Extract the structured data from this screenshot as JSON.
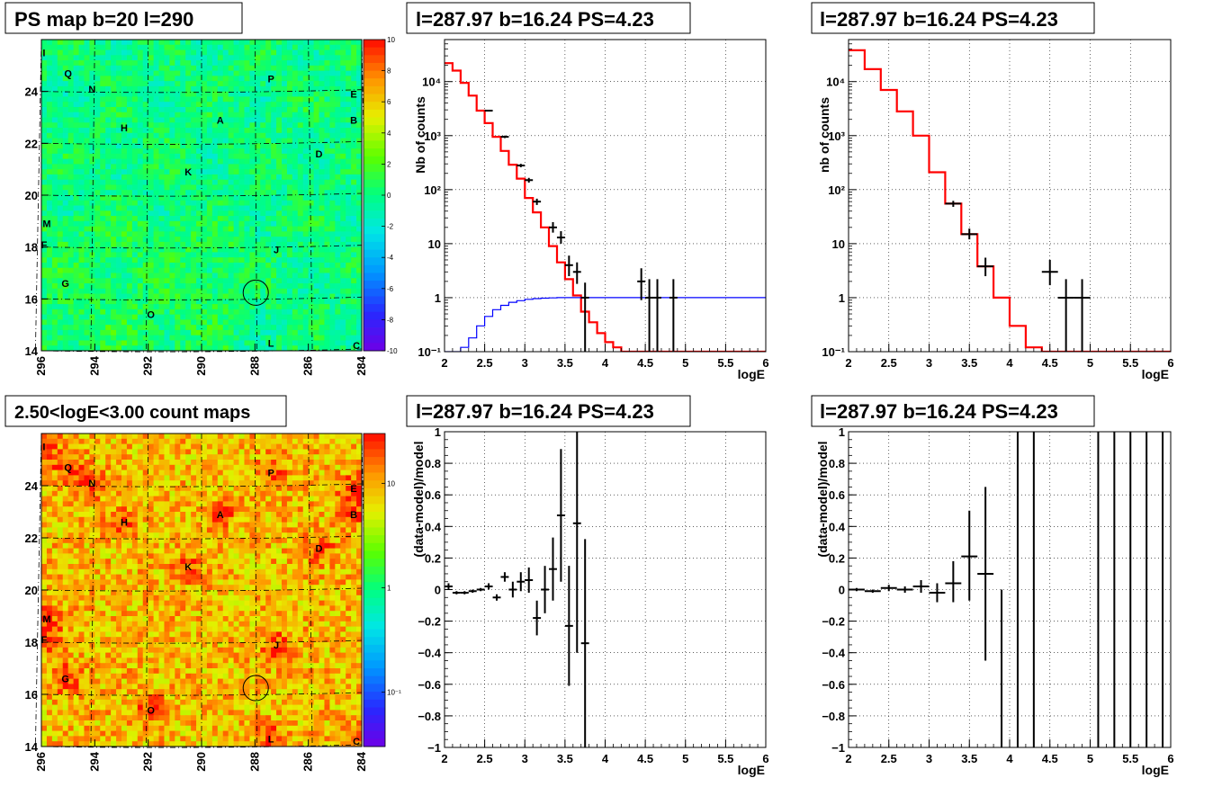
{
  "panels": {
    "map_ps": {
      "title": "PS map b=20 l=290",
      "x_ticks": [
        "296",
        "294",
        "292",
        "290",
        "288",
        "286",
        "284"
      ],
      "y_ticks": [
        "24",
        "22",
        "20",
        "18",
        "16",
        "14"
      ],
      "colorbar_ticks": [
        "10",
        "8",
        "6",
        "4",
        "2",
        "0",
        "-2",
        "-4",
        "-6",
        "-8",
        "-10"
      ],
      "colorscale": "linear",
      "zrange": [
        -10,
        10
      ]
    },
    "map_counts": {
      "title": "2.50<logE<3.00 count maps",
      "x_ticks": [
        "296",
        "294",
        "292",
        "290",
        "288",
        "286",
        "284"
      ],
      "y_ticks": [
        "24",
        "22",
        "20",
        "18",
        "16",
        "14"
      ],
      "colorbar_ticks": [
        "10",
        "1",
        "10⁻¹"
      ],
      "colorscale": "log"
    },
    "spec1": {
      "title": "l=287.97 b=16.24 PS=4.23",
      "ylabel": "Nb of counts",
      "xlabel": "logE"
    },
    "spec2": {
      "title": "l=287.97 b=16.24 PS=4.23",
      "ylabel": "nb of counts",
      "xlabel": "logE"
    },
    "res1": {
      "title": "l=287.97 b=16.24 PS=4.23",
      "ylabel": "(data-model)/model",
      "xlabel": "logE"
    },
    "res2": {
      "title": "l=287.97 b=16.24 PS=4.23",
      "ylabel": "(data-model)/model",
      "xlabel": "logE"
    }
  },
  "sources": [
    {
      "label": "I",
      "l": 295.9,
      "b": 25.5
    },
    {
      "label": "Q",
      "l": 295.0,
      "b": 24.7
    },
    {
      "label": "N",
      "l": 294.1,
      "b": 24.1
    },
    {
      "label": "P",
      "l": 287.4,
      "b": 24.5
    },
    {
      "label": "E",
      "l": 284.3,
      "b": 23.9
    },
    {
      "label": "A",
      "l": 289.3,
      "b": 22.9
    },
    {
      "label": "B",
      "l": 284.3,
      "b": 22.9
    },
    {
      "label": "H",
      "l": 292.9,
      "b": 22.6
    },
    {
      "label": "D",
      "l": 285.6,
      "b": 21.6
    },
    {
      "label": "K",
      "l": 290.5,
      "b": 20.9
    },
    {
      "label": "M",
      "l": 295.8,
      "b": 18.9
    },
    {
      "label": "F",
      "l": 295.9,
      "b": 18.1
    },
    {
      "label": "J",
      "l": 287.2,
      "b": 17.9
    },
    {
      "label": "G",
      "l": 295.1,
      "b": 16.6
    },
    {
      "label": "O",
      "l": 291.9,
      "b": 15.4
    },
    {
      "label": "L",
      "l": 287.4,
      "b": 14.3
    },
    {
      "label": "C",
      "l": 284.2,
      "b": 14.2
    }
  ],
  "candidate": {
    "l": 287.97,
    "b": 16.24,
    "ps": 4.23
  },
  "chart_data": [
    {
      "type": "heatmap",
      "title": "PS map b=20 l=290",
      "xrange": [
        296,
        284
      ],
      "yrange": [
        14,
        26
      ],
      "zrange": [
        -10,
        10
      ],
      "grid": true
    },
    {
      "type": "heatmap",
      "title": "2.50<logE<3.00 count maps",
      "xrange": [
        296,
        284
      ],
      "yrange": [
        14,
        26
      ],
      "zscale": "log",
      "zrange": [
        0.03,
        30
      ],
      "grid": true
    },
    {
      "type": "line",
      "title": "l=287.97 b=16.24 PS=4.23",
      "xlabel": "logE",
      "ylabel": "Nb of counts",
      "xlim": [
        2,
        6
      ],
      "ylim": [
        0.1,
        60000
      ],
      "yscale": "log",
      "grid": true,
      "x_ticks": [
        2,
        2.5,
        3,
        3.5,
        4,
        4.5,
        5,
        5.5,
        6
      ],
      "y_ticks": [
        {
          "v": 0.1,
          "t": "10⁻¹"
        },
        {
          "v": 1,
          "t": "1"
        },
        {
          "v": 10,
          "t": "10"
        },
        {
          "v": 100,
          "t": "10²"
        },
        {
          "v": 1000,
          "t": "10³"
        },
        {
          "v": 10000,
          "t": "10⁴"
        }
      ],
      "series": [
        {
          "style": "step",
          "color": "#ff0000",
          "edges": [
            2.0,
            2.1,
            2.2,
            2.3,
            2.4,
            2.5,
            2.6,
            2.7,
            2.8,
            2.9,
            3.0,
            3.1,
            3.2,
            3.3,
            3.4,
            3.5,
            3.6,
            3.7,
            3.8,
            3.9,
            4.0,
            4.1,
            4.2,
            4.3,
            4.4,
            6.0
          ],
          "values": [
            22000,
            16000,
            9500,
            5500,
            2900,
            1700,
            950,
            520,
            290,
            160,
            70,
            38,
            20,
            9,
            4.5,
            2.2,
            1.1,
            0.55,
            0.35,
            0.22,
            0.15,
            0.12,
            0.1,
            0.1,
            0.1
          ]
        },
        {
          "style": "step",
          "color": "#0000ff",
          "edges": [
            2.0,
            2.1,
            2.2,
            2.3,
            2.4,
            2.5,
            2.6,
            2.7,
            2.8,
            2.9,
            3.0,
            3.1,
            3.2,
            3.3,
            3.4,
            3.5,
            3.6,
            6.0
          ],
          "values": [
            0.1,
            0.1,
            0.12,
            0.18,
            0.3,
            0.45,
            0.6,
            0.72,
            0.82,
            0.88,
            0.93,
            0.96,
            0.98,
            0.99,
            1.0,
            1.0,
            1.0
          ]
        },
        {
          "style": "errorbars",
          "color": "#000000",
          "points": [
            {
              "x": 2.55,
              "y": 2900,
              "lo": 2800,
              "hi": 3000,
              "xw": 0.05
            },
            {
              "x": 2.75,
              "y": 950,
              "lo": 900,
              "hi": 1000,
              "xw": 0.05
            },
            {
              "x": 2.95,
              "y": 280,
              "lo": 260,
              "hi": 300,
              "xw": 0.05
            },
            {
              "x": 3.05,
              "y": 150,
              "lo": 135,
              "hi": 165,
              "xw": 0.05
            },
            {
              "x": 3.15,
              "y": 60,
              "lo": 52,
              "hi": 68,
              "xw": 0.05
            },
            {
              "x": 3.35,
              "y": 20,
              "lo": 16,
              "hi": 25,
              "xw": 0.05
            },
            {
              "x": 3.45,
              "y": 13,
              "lo": 10,
              "hi": 17,
              "xw": 0.05
            },
            {
              "x": 3.55,
              "y": 4,
              "lo": 2.5,
              "hi": 6,
              "xw": 0.05
            },
            {
              "x": 3.65,
              "y": 3,
              "lo": 1.8,
              "hi": 4.5,
              "xw": 0.05
            },
            {
              "x": 3.75,
              "y": 1,
              "lo": 0.1,
              "hi": 1.9,
              "xw": 0.05
            },
            {
              "x": 4.45,
              "y": 2,
              "lo": 0.9,
              "hi": 3.5,
              "xw": 0.05
            },
            {
              "x": 4.55,
              "y": 1,
              "lo": 0.1,
              "hi": 2.2,
              "xw": 0.05
            },
            {
              "x": 4.65,
              "y": 1,
              "lo": 0.1,
              "hi": 2.2,
              "xw": 0.05
            },
            {
              "x": 4.85,
              "y": 1,
              "lo": 0.1,
              "hi": 2.2,
              "xw": 0.05
            }
          ]
        }
      ]
    },
    {
      "type": "line",
      "title": "l=287.97 b=16.24 PS=4.23",
      "xlabel": "logE",
      "ylabel": "nb of counts",
      "xlim": [
        2,
        6
      ],
      "ylim": [
        0.1,
        60000
      ],
      "yscale": "log",
      "grid": true,
      "x_ticks": [
        2,
        2.5,
        3,
        3.5,
        4,
        4.5,
        5,
        5.5,
        6
      ],
      "y_ticks": [
        {
          "v": 0.1,
          "t": "10⁻¹"
        },
        {
          "v": 1,
          "t": "1"
        },
        {
          "v": 10,
          "t": "10"
        },
        {
          "v": 100,
          "t": "10²"
        },
        {
          "v": 1000,
          "t": "10³"
        },
        {
          "v": 10000,
          "t": "10⁴"
        }
      ],
      "series": [
        {
          "style": "step",
          "color": "#ff0000",
          "edges": [
            2.0,
            2.2,
            2.4,
            2.6,
            2.8,
            3.0,
            3.2,
            3.4,
            3.6,
            3.8,
            4.0,
            4.2,
            4.4,
            6.0
          ],
          "values": [
            38000,
            17000,
            7000,
            2800,
            1000,
            210,
            55,
            15,
            3.8,
            1.0,
            0.3,
            0.12,
            0.1
          ]
        },
        {
          "style": "errorbars",
          "color": "#000000",
          "points": [
            {
              "x": 3.3,
              "y": 55,
              "lo": 48,
              "hi": 62,
              "xw": 0.1
            },
            {
              "x": 3.5,
              "y": 15,
              "lo": 12,
              "hi": 19,
              "xw": 0.1
            },
            {
              "x": 3.7,
              "y": 3.8,
              "lo": 2.5,
              "hi": 5.5,
              "xw": 0.1
            },
            {
              "x": 4.5,
              "y": 3,
              "lo": 1.7,
              "hi": 5,
              "xw": 0.1
            },
            {
              "x": 4.7,
              "y": 1,
              "lo": 0.1,
              "hi": 2.2,
              "xw": 0.1
            },
            {
              "x": 4.9,
              "y": 1,
              "lo": 0.1,
              "hi": 2.2,
              "xw": 0.1
            }
          ]
        }
      ]
    },
    {
      "type": "scatter",
      "title": "l=287.97 b=16.24 PS=4.23",
      "xlabel": "logE",
      "ylabel": "(data-model)/model",
      "xlim": [
        2,
        6
      ],
      "ylim": [
        -1,
        1
      ],
      "grid": true,
      "x_ticks": [
        2,
        2.5,
        3,
        3.5,
        4,
        4.5,
        5,
        5.5,
        6
      ],
      "y_ticks": [
        {
          "v": -1,
          "t": "−1"
        },
        {
          "v": -0.8,
          "t": "−0.8"
        },
        {
          "v": -0.6,
          "t": "−0.6"
        },
        {
          "v": -0.4,
          "t": "−0.4"
        },
        {
          "v": -0.2,
          "t": "−0.2"
        },
        {
          "v": 0,
          "t": "0"
        },
        {
          "v": 0.2,
          "t": "0.2"
        },
        {
          "v": 0.4,
          "t": "0.4"
        },
        {
          "v": 0.6,
          "t": "0.6"
        },
        {
          "v": 0.8,
          "t": "0.8"
        },
        {
          "v": 1,
          "t": "1"
        }
      ],
      "series": [
        {
          "style": "errorbars",
          "color": "#000000",
          "points": [
            {
              "x": 2.05,
              "y": 0.02,
              "lo": 0.0,
              "hi": 0.04,
              "xw": 0.05
            },
            {
              "x": 2.15,
              "y": -0.02,
              "lo": -0.03,
              "hi": -0.01,
              "xw": 0.05
            },
            {
              "x": 2.25,
              "y": -0.02,
              "lo": -0.03,
              "hi": -0.01,
              "xw": 0.05
            },
            {
              "x": 2.35,
              "y": -0.01,
              "lo": -0.02,
              "hi": 0.0,
              "xw": 0.05
            },
            {
              "x": 2.45,
              "y": 0.0,
              "lo": -0.01,
              "hi": 0.01,
              "xw": 0.05
            },
            {
              "x": 2.55,
              "y": 0.02,
              "lo": 0.0,
              "hi": 0.04,
              "xw": 0.05
            },
            {
              "x": 2.65,
              "y": -0.05,
              "lo": -0.07,
              "hi": -0.03,
              "xw": 0.05
            },
            {
              "x": 2.75,
              "y": 0.08,
              "lo": 0.05,
              "hi": 0.11,
              "xw": 0.05
            },
            {
              "x": 2.85,
              "y": 0.0,
              "lo": -0.05,
              "hi": 0.05,
              "xw": 0.05
            },
            {
              "x": 2.95,
              "y": 0.05,
              "lo": -0.01,
              "hi": 0.11,
              "xw": 0.05
            },
            {
              "x": 3.05,
              "y": 0.06,
              "lo": -0.02,
              "hi": 0.14,
              "xw": 0.05
            },
            {
              "x": 3.15,
              "y": -0.18,
              "lo": -0.29,
              "hi": -0.07,
              "xw": 0.05
            },
            {
              "x": 3.25,
              "y": 0.0,
              "lo": -0.15,
              "hi": 0.15,
              "xw": 0.05
            },
            {
              "x": 3.35,
              "y": 0.13,
              "lo": -0.07,
              "hi": 0.33,
              "xw": 0.05
            },
            {
              "x": 3.45,
              "y": 0.47,
              "lo": 0.05,
              "hi": 0.89,
              "xw": 0.05
            },
            {
              "x": 3.55,
              "y": -0.23,
              "lo": -0.61,
              "hi": 0.15,
              "xw": 0.05
            },
            {
              "x": 3.65,
              "y": 0.42,
              "lo": -0.4,
              "hi": 1.0,
              "xw": 0.05
            },
            {
              "x": 3.75,
              "y": -0.34,
              "lo": -1.0,
              "hi": 0.32,
              "xw": 0.05
            }
          ]
        }
      ]
    },
    {
      "type": "scatter",
      "title": "l=287.97 b=16.24 PS=4.23",
      "xlabel": "logE",
      "ylabel": "(data-model)/model",
      "xlim": [
        2,
        6
      ],
      "ylim": [
        -1,
        1
      ],
      "grid": true,
      "x_ticks": [
        2,
        2.5,
        3,
        3.5,
        4,
        4.5,
        5,
        5.5,
        6
      ],
      "y_ticks": [
        {
          "v": -1,
          "t": "−1"
        },
        {
          "v": -0.8,
          "t": "−0.8"
        },
        {
          "v": -0.6,
          "t": "−0.6"
        },
        {
          "v": -0.4,
          "t": "−0.4"
        },
        {
          "v": -0.2,
          "t": "−0.2"
        },
        {
          "v": 0,
          "t": "0"
        },
        {
          "v": 0.2,
          "t": "0.2"
        },
        {
          "v": 0.4,
          "t": "0.4"
        },
        {
          "v": 0.6,
          "t": "0.6"
        },
        {
          "v": 0.8,
          "t": "0.8"
        },
        {
          "v": 1,
          "t": "1"
        }
      ],
      "series": [
        {
          "style": "errorbars",
          "color": "#000000",
          "points": [
            {
              "x": 2.1,
              "y": 0.0,
              "lo": -0.01,
              "hi": 0.01,
              "xw": 0.1
            },
            {
              "x": 2.3,
              "y": -0.01,
              "lo": -0.02,
              "hi": 0.0,
              "xw": 0.1
            },
            {
              "x": 2.5,
              "y": 0.01,
              "lo": -0.01,
              "hi": 0.03,
              "xw": 0.1
            },
            {
              "x": 2.7,
              "y": 0.0,
              "lo": -0.02,
              "hi": 0.02,
              "xw": 0.1
            },
            {
              "x": 2.9,
              "y": 0.02,
              "lo": -0.02,
              "hi": 0.06,
              "xw": 0.1
            },
            {
              "x": 3.1,
              "y": -0.02,
              "lo": -0.08,
              "hi": 0.04,
              "xw": 0.1
            },
            {
              "x": 3.3,
              "y": 0.04,
              "lo": -0.08,
              "hi": 0.18,
              "xw": 0.1
            },
            {
              "x": 3.5,
              "y": 0.21,
              "lo": -0.07,
              "hi": 0.5,
              "xw": 0.1
            },
            {
              "x": 3.7,
              "y": 0.1,
              "lo": -0.45,
              "hi": 0.65,
              "xw": 0.1
            },
            {
              "x": 3.9,
              "y": 0.0,
              "lo": -1.0,
              "hi": 0.0,
              "xw": 0.0
            },
            {
              "x": 4.1,
              "y": 0.0,
              "lo": -1.0,
              "hi": 1.0,
              "xw": 0.0
            },
            {
              "x": 4.3,
              "y": 0.0,
              "lo": -1.0,
              "hi": 1.0,
              "xw": 0.0
            },
            {
              "x": 5.1,
              "y": 0.0,
              "lo": -1.0,
              "hi": 1.0,
              "xw": 0.0
            },
            {
              "x": 5.3,
              "y": 0.0,
              "lo": -1.0,
              "hi": 1.0,
              "xw": 0.0
            },
            {
              "x": 5.5,
              "y": 0.0,
              "lo": -1.0,
              "hi": 1.0,
              "xw": 0.0
            },
            {
              "x": 5.7,
              "y": 0.0,
              "lo": -1.0,
              "hi": 1.0,
              "xw": 0.0
            },
            {
              "x": 5.9,
              "y": 0.0,
              "lo": -1.0,
              "hi": 1.0,
              "xw": 0.0
            }
          ]
        }
      ]
    }
  ]
}
